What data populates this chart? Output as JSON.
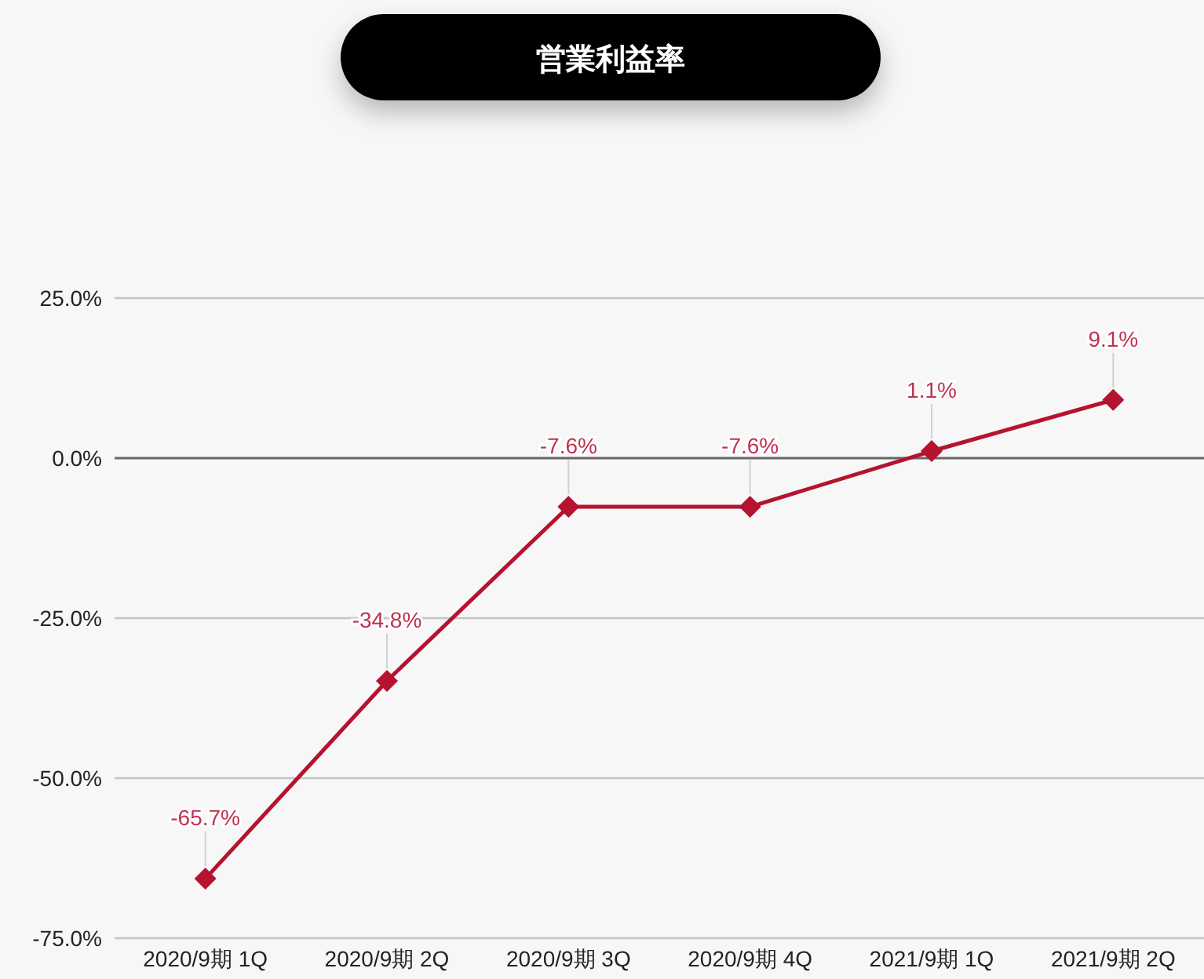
{
  "chart_data": {
    "type": "line",
    "title": "営業利益率",
    "categories": [
      "2020/9期 1Q",
      "2020/9期 2Q",
      "2020/9期 3Q",
      "2020/9期 4Q",
      "2021/9期 1Q",
      "2021/9期 2Q"
    ],
    "series": [
      {
        "color": "#b5132f",
        "values": [
          -65.7,
          -34.8,
          -7.6,
          -7.6,
          1.1,
          9.1
        ],
        "value_labels": [
          "-65.7%",
          "-34.8%",
          "-7.6%",
          "-7.6%",
          "1.1%",
          "9.1%"
        ]
      }
    ],
    "ylim": [
      -75,
      25
    ],
    "yticks": [
      {
        "value": -75,
        "label": "-75.0%"
      },
      {
        "value": -50,
        "label": "-50.0%"
      },
      {
        "value": -25,
        "label": "-25.0%"
      },
      {
        "value": 0,
        "label": "0.0%"
      },
      {
        "value": 25,
        "label": "25.0%"
      }
    ],
    "grid": "y",
    "marker": "diamond",
    "line_style": "solid"
  }
}
